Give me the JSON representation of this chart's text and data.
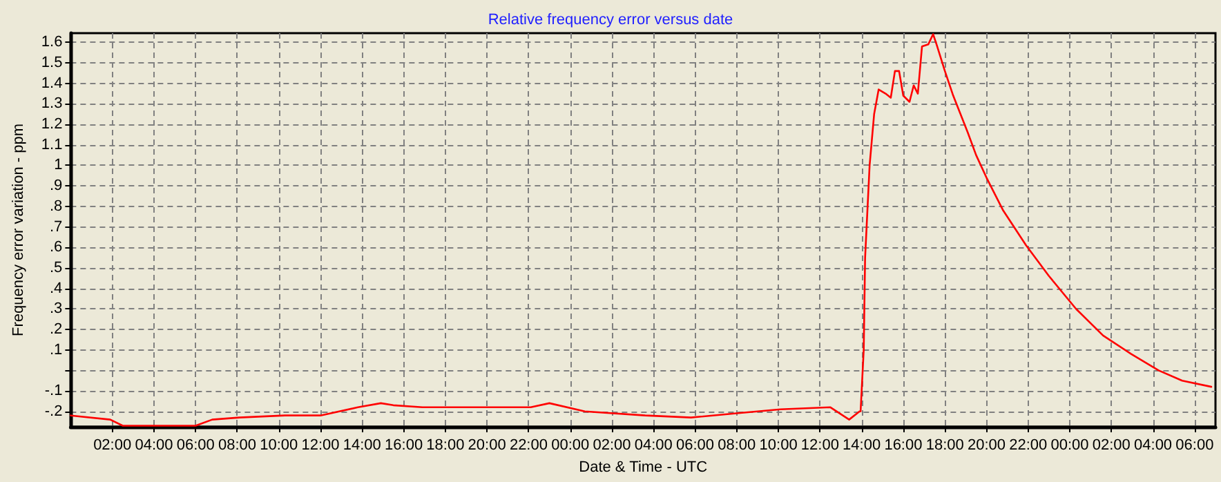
{
  "chart_data": {
    "type": "line",
    "title": "Relative frequency error versus date",
    "xlabel": "Date & Time - UTC",
    "ylabel": "Frequency error variation - ppm",
    "x": [
      "--01-01T00:00",
      "--01-01T01:54",
      "--01-01T02:30",
      "--01-01T04:00",
      "--01-01T06:00",
      "--01-01T06:48",
      "--01-01T08:06",
      "--01-01T10:18",
      "--01-01T12:00",
      "--01-01T13:48",
      "--01-01T14:54",
      "--01-01T15:30",
      "--01-01T16:54",
      "--01-01T22:06",
      "--01-01T23:00",
      "--01-02T00:42",
      "--01-02T03:36",
      "--01-02T05:48",
      "--01-02T07:54",
      "--01-02T10:06",
      "--01-02T12:30",
      "--01-02T13:24",
      "--01-02T13:54",
      "--01-02T13:57",
      "--01-02T14:06",
      "--01-02T14:10",
      "--01-02T14:23",
      "--01-02T14:36",
      "--01-02T14:49",
      "--01-02T15:09",
      "--01-02T15:24",
      "--01-02T15:36",
      "--01-02T15:48",
      "--01-02T16:00",
      "--01-02T16:18",
      "--01-02T16:30",
      "--01-02T16:42",
      "--01-02T16:54",
      "--01-02T17:12",
      "--01-02T17:26",
      "--01-02T17:36",
      "--01-02T18:00",
      "--01-02T18:24",
      "--01-02T19:06",
      "--01-02T19:30",
      "--01-02T20:00",
      "--01-02T20:48",
      "--01-02T21:54",
      "--01-02T23:00",
      "--01-03T00:18",
      "--01-03T01:36",
      "--01-03T02:57",
      "--01-03T04:16",
      "--01-03T05:24",
      "--01-03T06:48"
    ],
    "series": [
      {
        "color": "#ff0000",
        "values": [
          -0.22,
          -0.24,
          -0.27,
          -0.27,
          -0.27,
          -0.24,
          -0.23,
          -0.22,
          -0.22,
          -0.18,
          -0.16,
          -0.17,
          -0.18,
          -0.18,
          -0.16,
          -0.2,
          -0.22,
          -0.23,
          -0.21,
          -0.19,
          -0.18,
          -0.24,
          -0.2,
          -0.2,
          0.1,
          0.55,
          1.0,
          1.25,
          1.37,
          1.35,
          1.33,
          1.46,
          1.46,
          1.34,
          1.31,
          1.39,
          1.35,
          1.58,
          1.59,
          1.64,
          1.59,
          1.46,
          1.34,
          1.16,
          1.05,
          0.94,
          0.78,
          0.61,
          0.46,
          0.3,
          0.17,
          0.08,
          0.0,
          -0.05,
          -0.08
        ]
      }
    ],
    "xlim": [
      "--01-01T00:00",
      "--01-03T07:00"
    ],
    "xticks": [
      {
        "value": "--01-01T02:00",
        "label": "02:00"
      },
      {
        "value": "--01-01T04:00",
        "label": "04:00"
      },
      {
        "value": "--01-01T06:00",
        "label": "06:00"
      },
      {
        "value": "--01-01T08:00",
        "label": "08:00"
      },
      {
        "value": "--01-01T10:00",
        "label": "10:00"
      },
      {
        "value": "--01-01T12:00",
        "label": "12:00"
      },
      {
        "value": "--01-01T14:00",
        "label": "14:00"
      },
      {
        "value": "--01-01T16:00",
        "label": "16:00"
      },
      {
        "value": "--01-01T18:00",
        "label": "18:00"
      },
      {
        "value": "--01-01T20:00",
        "label": "20:00"
      },
      {
        "value": "--01-01T22:00",
        "label": "22:00"
      },
      {
        "value": "--01-02T00:00",
        "label": "00:00"
      },
      {
        "value": "--01-02T02:00",
        "label": "02:00"
      },
      {
        "value": "--01-02T04:00",
        "label": "04:00"
      },
      {
        "value": "--01-02T06:00",
        "label": "06:00"
      },
      {
        "value": "--01-02T08:00",
        "label": "08:00"
      },
      {
        "value": "--01-02T10:00",
        "label": "10:00"
      },
      {
        "value": "--01-02T12:00",
        "label": "12:00"
      },
      {
        "value": "--01-02T14:00",
        "label": "14:00"
      },
      {
        "value": "--01-02T16:00",
        "label": "16:00"
      },
      {
        "value": "--01-02T18:00",
        "label": "18:00"
      },
      {
        "value": "--01-02T20:00",
        "label": "20:00"
      },
      {
        "value": "--01-02T22:00",
        "label": "22:00"
      },
      {
        "value": "--01-03T00:00",
        "label": "00:00"
      },
      {
        "value": "--01-03T02:00",
        "label": "02:00"
      },
      {
        "value": "--01-03T04:00",
        "label": "04:00"
      },
      {
        "value": "--01-03T06:00",
        "label": "06:00"
      }
    ],
    "ylim": [
      -0.275,
      1.645
    ],
    "yticks": [
      {
        "value": -0.2,
        "label": "-.2"
      },
      {
        "value": -0.1,
        "label": "-.1"
      },
      {
        "value": 0,
        "label": null
      },
      {
        "value": 0.1,
        "label": ".1"
      },
      {
        "value": 0.2,
        "label": ".2"
      },
      {
        "value": 0.3,
        "label": ".3"
      },
      {
        "value": 0.4,
        "label": ".4"
      },
      {
        "value": 0.5,
        "label": ".5"
      },
      {
        "value": 0.6,
        "label": ".6"
      },
      {
        "value": 0.7,
        "label": ".7"
      },
      {
        "value": 0.8,
        "label": ".8"
      },
      {
        "value": 0.9,
        "label": ".9"
      },
      1,
      1.1,
      1.2,
      1.3,
      1.4,
      1.5,
      1.6
    ],
    "grid": true,
    "marker": "none",
    "line_style": "solid"
  }
}
